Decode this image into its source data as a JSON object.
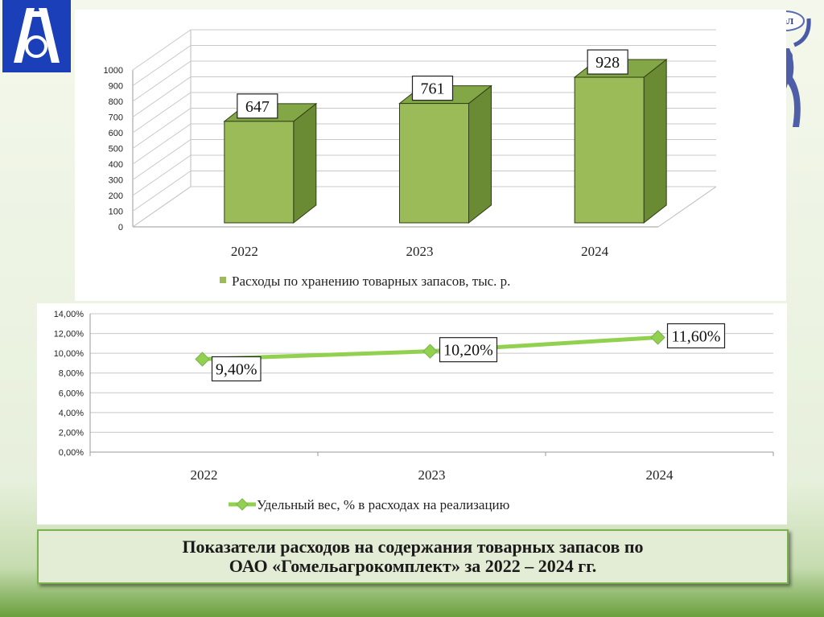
{
  "slide": {
    "caption_line1": "Показатели расходов на содержания товарных запасов по",
    "caption_line2": "ОАО «Гомельагрокомплект» за 2022 – 2024 гг.",
    "logo_text": "КиЛ"
  },
  "colors": {
    "bar_front": "#9bbb59",
    "bar_side": "#6a8a33",
    "bar_top": "#83a646",
    "line": "#92d050",
    "marker": "#92d050",
    "caption_bg": "#e3ecd4",
    "logo_blue": "#1a3fb8"
  },
  "chart_data": [
    {
      "type": "bar",
      "categories": [
        "2022",
        "2023",
        "2024"
      ],
      "series": [
        {
          "name": "Расходы по хранению товарных запасов, тыс. р.",
          "values": [
            647,
            761,
            928
          ]
        }
      ],
      "data_labels": [
        "647",
        "761",
        "928"
      ],
      "yticks": [
        "0",
        "100",
        "200",
        "300",
        "400",
        "500",
        "600",
        "700",
        "800",
        "900",
        "1000"
      ],
      "ylim": [
        0,
        1000
      ],
      "grid": true,
      "legend": "bottom"
    },
    {
      "type": "line",
      "categories": [
        "2022",
        "2023",
        "2024"
      ],
      "series": [
        {
          "name": "Удельный вес, % в расходах на реализацию",
          "values": [
            9.4,
            10.2,
            11.6
          ]
        }
      ],
      "data_labels": [
        "9,40%",
        "10,20%",
        "11,60%"
      ],
      "yticks": [
        "0,00%",
        "2,00%",
        "4,00%",
        "6,00%",
        "8,00%",
        "10,00%",
        "12,00%",
        "14,00%"
      ],
      "ylim": [
        0,
        14
      ],
      "grid": true,
      "legend": "bottom"
    }
  ]
}
